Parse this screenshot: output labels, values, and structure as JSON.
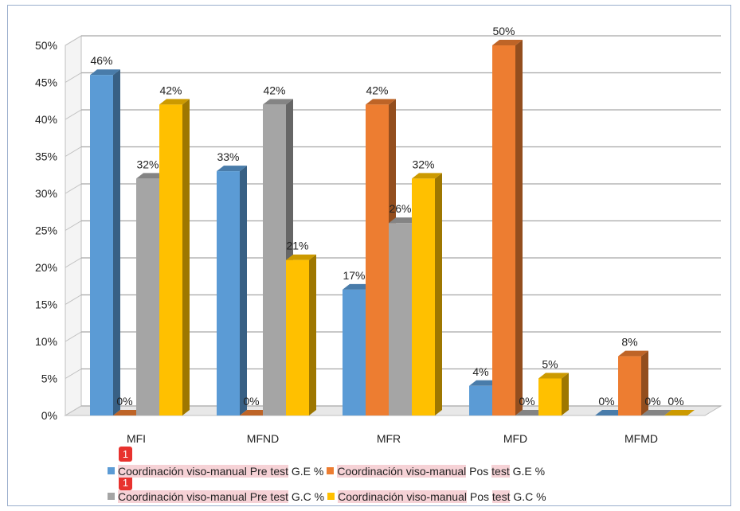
{
  "chart_data": {
    "type": "bar",
    "categories": [
      "MFI",
      "MFND",
      "MFR",
      "MFD",
      "MFMD"
    ],
    "yticks": [
      "0%",
      "5%",
      "10%",
      "15%",
      "20%",
      "25%",
      "30%",
      "35%",
      "40%",
      "45%",
      "50%"
    ],
    "ylim": [
      0,
      50
    ],
    "grid": true,
    "legend_position": "bottom",
    "series": [
      {
        "name": "Coordinación viso-manual Pre test G.E %",
        "color": "#5b9bd5",
        "values": [
          46,
          33,
          17,
          4,
          0
        ],
        "labels": [
          "46%",
          "33%",
          "17%",
          "4%",
          "0%"
        ]
      },
      {
        "name": "Coordinación viso-manual Pos test G.E %",
        "color": "#ed7d31",
        "values": [
          0,
          0,
          42,
          50,
          8
        ],
        "labels": [
          "0%",
          "0%",
          "42%",
          "50%",
          "8%"
        ]
      },
      {
        "name": "Coordinación viso-manual Pre test G.C %",
        "color": "#a5a5a5",
        "values": [
          32,
          42,
          26,
          0,
          0
        ],
        "labels": [
          "32%",
          "42%",
          "26%",
          "0%",
          "0%"
        ]
      },
      {
        "name": "Coordinación viso-manual Pos test G.C %",
        "color": "#ffc000",
        "values": [
          42,
          21,
          32,
          5,
          0
        ],
        "labels": [
          "42%",
          "21%",
          "32%",
          "5%",
          "0%"
        ]
      }
    ]
  },
  "legend": {
    "row1": [
      {
        "parts": [
          {
            "t": "Coordinación viso-manual Pre test",
            "hl": true
          },
          {
            "t": " G.E %",
            "hl": false
          }
        ]
      },
      {
        "parts": [
          {
            "t": "Coordinación viso-manual",
            "hl": true
          },
          {
            "t": " Pos ",
            "hl": false
          },
          {
            "t": "test",
            "hl": true
          },
          {
            "t": " G.E %",
            "hl": false
          }
        ]
      }
    ],
    "row2": [
      {
        "parts": [
          {
            "t": "Coordinación viso-manual Pre test",
            "hl": true
          },
          {
            "t": " G.C %",
            "hl": false
          }
        ]
      },
      {
        "parts": [
          {
            "t": "Coordinación viso-manual",
            "hl": true
          },
          {
            "t": " Pos ",
            "hl": false
          },
          {
            "t": "test",
            "hl": true
          },
          {
            "t": " G.C %",
            "hl": false
          }
        ]
      }
    ]
  },
  "badges": [
    {
      "text": "1"
    },
    {
      "text": "1"
    }
  ]
}
